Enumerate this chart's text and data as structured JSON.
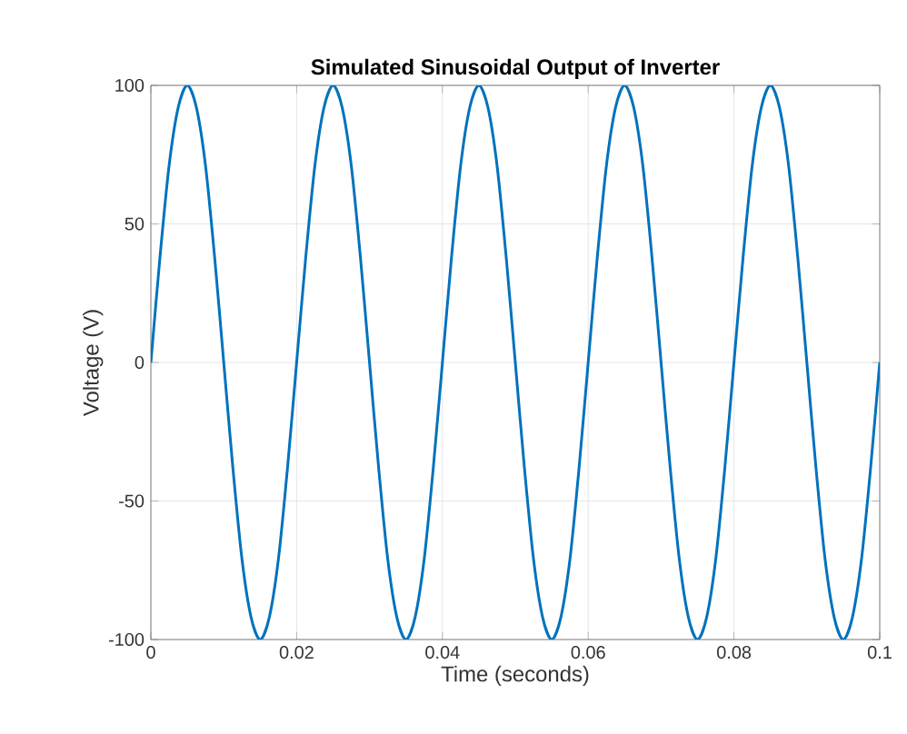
{
  "chart_data": {
    "type": "line",
    "title": "Simulated Sinusoidal Output of Inverter",
    "xlabel": "Time (seconds)",
    "ylabel": "Voltage (V)",
    "x": [
      0,
      0.00125,
      0.0025,
      0.00375,
      0.005,
      0.00625,
      0.0075,
      0.00875,
      0.01,
      0.01125,
      0.0125,
      0.01375,
      0.015,
      0.01625,
      0.0175,
      0.01875,
      0.02,
      0.02125,
      0.0225,
      0.02375,
      0.025,
      0.02625,
      0.0275,
      0.02875,
      0.03,
      0.03125,
      0.0325,
      0.03375,
      0.035,
      0.03625,
      0.0375,
      0.03875,
      0.04,
      0.04125,
      0.0425,
      0.04375,
      0.045,
      0.04625,
      0.0475,
      0.04875,
      0.05,
      0.05125,
      0.0525,
      0.05375,
      0.055,
      0.05625,
      0.0575,
      0.05875,
      0.06,
      0.06125,
      0.0625,
      0.06375,
      0.065,
      0.06625,
      0.0675,
      0.06875,
      0.07,
      0.07125,
      0.0725,
      0.07375,
      0.075,
      0.07625,
      0.0775,
      0.07875,
      0.08,
      0.08125,
      0.0825,
      0.08375,
      0.085,
      0.08625,
      0.0875,
      0.08875,
      0.09,
      0.09125,
      0.0925,
      0.09375,
      0.095,
      0.09625,
      0.0975,
      0.09875,
      0.1
    ],
    "series": [
      {
        "color": "#0072bd",
        "values": [
          0,
          38,
          71,
          92,
          100,
          92,
          71,
          38,
          0,
          -38,
          -71,
          -92,
          -100,
          -92,
          -71,
          -38,
          0,
          38,
          71,
          92,
          100,
          92,
          71,
          38,
          0,
          -38,
          -71,
          -92,
          -100,
          -92,
          -71,
          -38,
          0,
          38,
          71,
          92,
          100,
          92,
          71,
          38,
          0,
          -38,
          -71,
          -92,
          -100,
          -92,
          -71,
          -38,
          0,
          38,
          71,
          92,
          100,
          92,
          71,
          38,
          0,
          -38,
          -71,
          -92,
          -100,
          -92,
          -71,
          -38,
          0,
          38,
          71,
          92,
          100,
          92,
          71,
          38,
          0,
          -38,
          -71,
          -92,
          -100,
          -92,
          -71,
          -38,
          0
        ]
      }
    ],
    "xlim": [
      0,
      0.1
    ],
    "ylim": [
      -100,
      100
    ],
    "xticks": [
      0,
      0.02,
      0.04,
      0.06,
      0.08,
      0.1
    ],
    "yticks": [
      -100,
      -50,
      0,
      50,
      100
    ],
    "grid": true,
    "line_style": "solid",
    "marker": "none"
  }
}
